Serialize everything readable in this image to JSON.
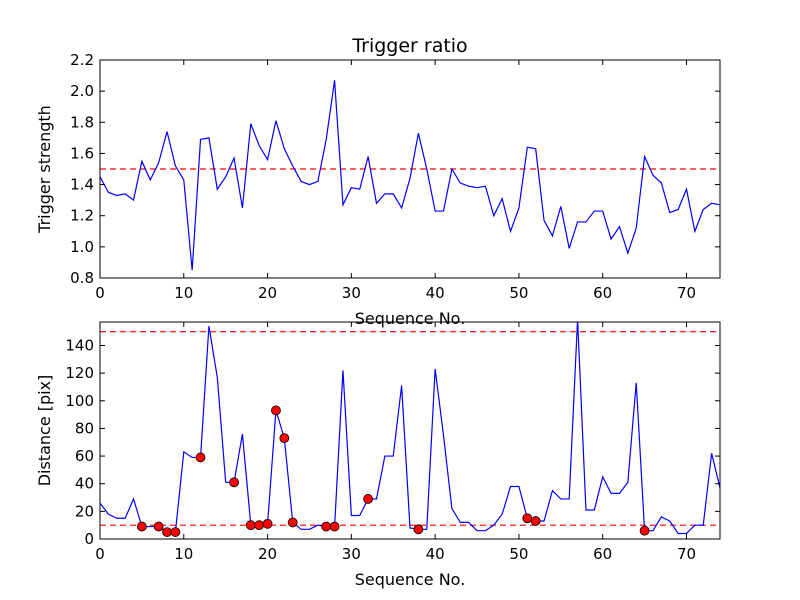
{
  "chart_data": [
    {
      "type": "line",
      "title": "Trigger ratio",
      "xlabel": "Sequence No.",
      "ylabel": "Trigger strength",
      "xlim": [
        0,
        74
      ],
      "ylim": [
        0.8,
        2.2
      ],
      "xticks": [
        0,
        10,
        20,
        30,
        40,
        50,
        60,
        70
      ],
      "yticks": [
        0.8,
        1.0,
        1.2,
        1.4,
        1.6,
        1.8,
        2.0,
        2.2
      ],
      "ytick_labels": [
        "0.8",
        "1.0",
        "1.2",
        "1.4",
        "1.6",
        "1.8",
        "2.0",
        "2.2"
      ],
      "grid": false,
      "threshold_lines": [
        1.5
      ],
      "series": [
        {
          "color": "#0000ff",
          "x": [
            0,
            1,
            2,
            3,
            4,
            5,
            6,
            7,
            8,
            9,
            10,
            11,
            12,
            13,
            14,
            15,
            16,
            17,
            18,
            19,
            20,
            21,
            22,
            23,
            24,
            25,
            26,
            27,
            28,
            29,
            30,
            31,
            32,
            33,
            34,
            35,
            36,
            37,
            38,
            39,
            40,
            41,
            42,
            43,
            44,
            45,
            46,
            47,
            48,
            49,
            50,
            51,
            52,
            53,
            54,
            55,
            56,
            57,
            58,
            59,
            60,
            61,
            62,
            63,
            64,
            65,
            66,
            67,
            68,
            69,
            70,
            71,
            72,
            73,
            74
          ],
          "values": [
            1.45,
            1.35,
            1.33,
            1.34,
            1.3,
            1.55,
            1.43,
            1.54,
            1.74,
            1.52,
            1.43,
            0.85,
            1.69,
            1.7,
            1.37,
            1.45,
            1.57,
            1.25,
            1.79,
            1.65,
            1.56,
            1.81,
            1.63,
            1.52,
            1.42,
            1.4,
            1.42,
            1.69,
            2.07,
            1.27,
            1.38,
            1.37,
            1.58,
            1.28,
            1.34,
            1.34,
            1.25,
            1.44,
            1.73,
            1.5,
            1.23,
            1.23,
            1.5,
            1.41,
            1.39,
            1.38,
            1.39,
            1.2,
            1.31,
            1.1,
            1.25,
            1.64,
            1.63,
            1.17,
            1.07,
            1.26,
            0.99,
            1.16,
            1.16,
            1.23,
            1.23,
            1.05,
            1.13,
            0.96,
            1.12,
            1.58,
            1.46,
            1.41,
            1.22,
            1.24,
            1.37,
            1.1,
            1.24,
            1.28,
            1.27
          ]
        }
      ],
      "threshold_color": "#ff0000"
    },
    {
      "type": "line",
      "title": "",
      "xlabel": "Sequence No.",
      "ylabel": "Distance [pix]",
      "xlim": [
        0,
        74
      ],
      "ylim": [
        0,
        157
      ],
      "xticks": [
        0,
        10,
        20,
        30,
        40,
        50,
        60,
        70
      ],
      "yticks": [
        0,
        20,
        40,
        60,
        80,
        100,
        120,
        140
      ],
      "grid": false,
      "threshold_lines": [
        10,
        150
      ],
      "series": [
        {
          "color": "#0000ff",
          "x": [
            0,
            1,
            2,
            3,
            4,
            5,
            6,
            7,
            8,
            9,
            10,
            11,
            12,
            13,
            14,
            15,
            16,
            17,
            18,
            19,
            20,
            21,
            22,
            23,
            24,
            25,
            26,
            27,
            28,
            29,
            30,
            31,
            32,
            33,
            34,
            35,
            36,
            37,
            38,
            39,
            40,
            41,
            42,
            43,
            44,
            45,
            46,
            47,
            48,
            49,
            50,
            51,
            52,
            53,
            54,
            55,
            56,
            57,
            58,
            59,
            60,
            61,
            62,
            63,
            64,
            65,
            66,
            67,
            68,
            69,
            70,
            71,
            72,
            73,
            74
          ],
          "values": [
            26,
            18,
            15,
            15,
            29,
            9,
            9,
            9,
            5,
            5,
            63,
            59,
            59,
            154,
            117,
            41,
            41,
            76,
            10,
            10,
            11,
            93,
            73,
            12,
            7,
            7,
            10,
            9,
            9,
            122,
            17,
            17,
            29,
            29,
            60,
            60,
            111,
            8,
            7,
            7,
            123,
            75,
            22,
            12,
            12,
            6,
            6,
            10,
            18,
            38,
            38,
            15,
            13,
            13,
            35,
            29,
            29,
            159,
            21,
            21,
            45,
            33,
            33,
            41,
            113,
            6,
            6,
            16,
            13,
            4,
            4,
            10,
            10,
            62,
            37
          ]
        },
        {
          "name": "",
          "marker": "circle",
          "color": "#ff0000",
          "x": [
            5,
            7,
            8,
            9,
            12,
            16,
            18,
            19,
            20,
            21,
            22,
            23,
            27,
            28,
            32,
            38,
            51,
            52,
            65
          ],
          "values": [
            9,
            9,
            5,
            5,
            59,
            41,
            10,
            10,
            11,
            93,
            73,
            12,
            9,
            9,
            29,
            7,
            15,
            13,
            6
          ]
        }
      ],
      "threshold_color": "#ff0000"
    }
  ]
}
